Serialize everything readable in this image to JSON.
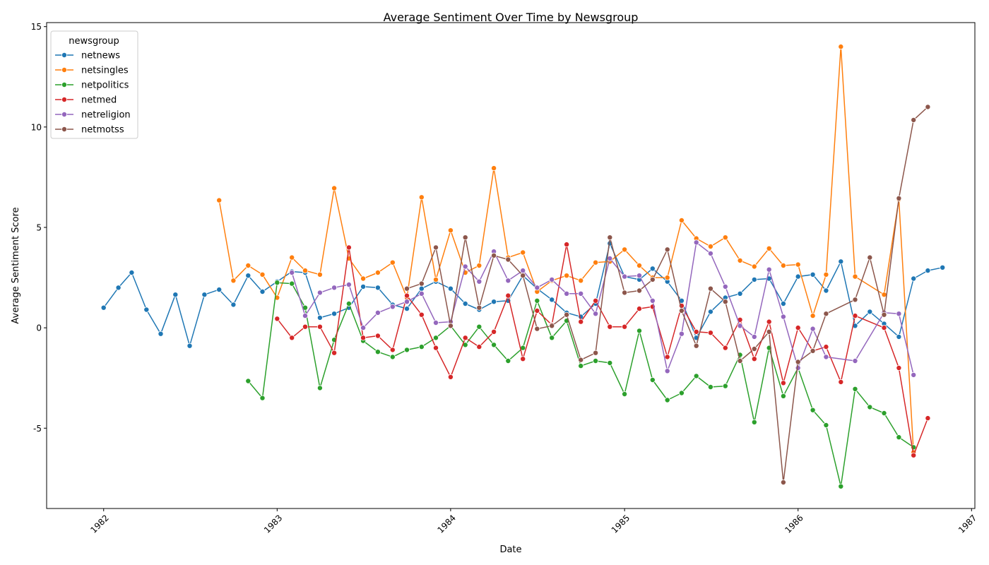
{
  "chart_data": {
    "type": "line",
    "title": "Average Sentiment Over Time by Newsgroup",
    "xlabel": "Date",
    "ylabel": "Average Sentiment Score",
    "xlim": [
      "1981-09-03",
      "1987-01-08"
    ],
    "ylim": [
      -9,
      15.2
    ],
    "x_ticks": [
      "1982",
      "1983",
      "1984",
      "1985",
      "1986",
      "1987"
    ],
    "y_ticks": [
      -5,
      0,
      5,
      10,
      15
    ],
    "grid": false,
    "legend": {
      "title": "newsgroup",
      "placement": "top-left"
    },
    "series": [
      {
        "name": "netnews",
        "color": "#1f77b4",
        "points": [
          [
            "1982-01",
            1.0
          ],
          [
            "1982-02",
            2.0
          ],
          [
            "1982-03",
            2.75
          ],
          [
            "1982-04",
            0.9
          ],
          [
            "1982-05",
            -0.3
          ],
          [
            "1982-06",
            1.65
          ],
          [
            "1982-07",
            -0.9
          ],
          [
            "1982-08",
            1.65
          ],
          [
            "1982-09",
            1.9
          ],
          [
            "1982-10",
            1.15
          ],
          [
            "1982-11",
            2.6
          ],
          [
            "1982-12",
            1.8
          ],
          [
            "1983-01",
            2.3
          ],
          [
            "1983-02",
            2.8
          ],
          [
            "1983-03",
            2.75
          ],
          [
            "1983-04",
            0.5
          ],
          [
            "1983-05",
            0.7
          ],
          [
            "1983-06",
            1.0
          ],
          [
            "1983-07",
            2.05
          ],
          [
            "1983-08",
            2.0
          ],
          [
            "1983-09",
            1.15
          ],
          [
            "1983-10",
            0.95
          ],
          [
            "1983-11",
            1.95
          ],
          [
            "1983-12",
            2.3
          ],
          [
            "1984-01",
            1.95
          ],
          [
            "1984-02",
            1.2
          ],
          [
            "1984-03",
            0.9
          ],
          [
            "1984-04",
            1.3
          ],
          [
            "1984-05",
            1.35
          ],
          [
            "1984-06",
            2.6
          ],
          [
            "1984-07",
            1.95
          ],
          [
            "1984-08",
            1.4
          ],
          [
            "1984-09",
            0.75
          ],
          [
            "1984-10",
            0.55
          ],
          [
            "1984-11",
            1.2
          ],
          [
            "1984-12",
            4.2
          ],
          [
            "1985-01",
            2.55
          ],
          [
            "1985-02",
            2.4
          ],
          [
            "1985-03",
            2.95
          ],
          [
            "1985-04",
            2.3
          ],
          [
            "1985-05",
            1.35
          ],
          [
            "1985-06",
            -0.5
          ],
          [
            "1985-07",
            0.8
          ],
          [
            "1985-08",
            1.5
          ],
          [
            "1985-09",
            1.7
          ],
          [
            "1985-10",
            2.4
          ],
          [
            "1985-11",
            2.45
          ],
          [
            "1985-12",
            1.2
          ],
          [
            "1986-01",
            2.55
          ],
          [
            "1986-02",
            2.65
          ],
          [
            "1986-03",
            1.85
          ],
          [
            "1986-04",
            3.3
          ],
          [
            "1986-05",
            0.1
          ],
          [
            "1986-06",
            0.8
          ],
          [
            "1986-07",
            0.2
          ],
          [
            "1986-08",
            -0.45
          ],
          [
            "1986-09",
            2.45
          ],
          [
            "1986-10",
            2.85
          ],
          [
            "1986-11",
            3.0
          ]
        ]
      },
      {
        "name": "netsingles",
        "color": "#ff7f0e",
        "points": [
          [
            "1982-09",
            6.35
          ],
          [
            "1982-10",
            2.35
          ],
          [
            "1982-11",
            3.1
          ],
          [
            "1982-12",
            2.65
          ],
          [
            "1983-01",
            1.5
          ],
          [
            "1983-02",
            3.5
          ],
          [
            "1983-03",
            2.85
          ],
          [
            "1983-04",
            2.65
          ],
          [
            "1983-05",
            6.95
          ],
          [
            "1983-06",
            3.45
          ],
          [
            "1983-07",
            2.45
          ],
          [
            "1983-08",
            2.75
          ],
          [
            "1983-09",
            3.25
          ],
          [
            "1983-10",
            1.5
          ],
          [
            "1983-11",
            6.5
          ],
          [
            "1983-12",
            2.4
          ],
          [
            "1984-01",
            4.85
          ],
          [
            "1984-02",
            2.75
          ],
          [
            "1984-03",
            3.1
          ],
          [
            "1984-04",
            7.95
          ],
          [
            "1984-05",
            3.5
          ],
          [
            "1984-06",
            3.75
          ],
          [
            "1984-07",
            1.8
          ],
          [
            "1984-08",
            2.35
          ],
          [
            "1984-09",
            2.6
          ],
          [
            "1984-10",
            2.35
          ],
          [
            "1984-11",
            3.25
          ],
          [
            "1984-12",
            3.3
          ],
          [
            "1985-01",
            3.9
          ],
          [
            "1985-02",
            3.1
          ],
          [
            "1985-03",
            2.5
          ],
          [
            "1985-04",
            2.5
          ],
          [
            "1985-05",
            5.35
          ],
          [
            "1985-06",
            4.45
          ],
          [
            "1985-07",
            4.05
          ],
          [
            "1985-08",
            4.5
          ],
          [
            "1985-09",
            3.35
          ],
          [
            "1985-10",
            3.05
          ],
          [
            "1985-11",
            3.95
          ],
          [
            "1985-12",
            3.1
          ],
          [
            "1986-01",
            3.15
          ],
          [
            "1986-02",
            0.6
          ],
          [
            "1986-03",
            2.65
          ],
          [
            "1986-04",
            14.0
          ],
          [
            "1986-05",
            2.55
          ],
          [
            "1986-07",
            1.65
          ],
          [
            "1986-08",
            6.4
          ],
          [
            "1986-09",
            -6.2
          ]
        ]
      },
      {
        "name": "netpolitics",
        "color": "#2ca02c",
        "points": [
          [
            "1982-11",
            -2.65
          ],
          [
            "1982-12",
            -3.5
          ],
          [
            "1983-01",
            2.25
          ],
          [
            "1983-02",
            2.2
          ],
          [
            "1983-03",
            1.0
          ],
          [
            "1983-04",
            -3.0
          ],
          [
            "1983-05",
            -0.6
          ],
          [
            "1983-06",
            1.2
          ],
          [
            "1983-07",
            -0.65
          ],
          [
            "1983-08",
            -1.2
          ],
          [
            "1983-09",
            -1.45
          ],
          [
            "1983-10",
            -1.1
          ],
          [
            "1983-11",
            -0.95
          ],
          [
            "1983-12",
            -0.5
          ],
          [
            "1984-01",
            0.1
          ],
          [
            "1984-02",
            -0.85
          ],
          [
            "1984-03",
            0.05
          ],
          [
            "1984-04",
            -0.85
          ],
          [
            "1984-05",
            -1.65
          ],
          [
            "1984-06",
            -1.0
          ],
          [
            "1984-07",
            1.35
          ],
          [
            "1984-08",
            -0.5
          ],
          [
            "1984-09",
            0.35
          ],
          [
            "1984-10",
            -1.9
          ],
          [
            "1984-11",
            -1.65
          ],
          [
            "1984-12",
            -1.75
          ],
          [
            "1985-01",
            -3.3
          ],
          [
            "1985-02",
            -0.15
          ],
          [
            "1985-03",
            -2.6
          ],
          [
            "1985-04",
            -3.6
          ],
          [
            "1985-05",
            -3.25
          ],
          [
            "1985-06",
            -2.4
          ],
          [
            "1985-07",
            -2.95
          ],
          [
            "1985-08",
            -2.9
          ],
          [
            "1985-09",
            -1.35
          ],
          [
            "1985-10",
            -4.7
          ],
          [
            "1985-11",
            -1.0
          ],
          [
            "1985-12",
            -3.4
          ],
          [
            "1986-01",
            -2.0
          ],
          [
            "1986-02",
            -4.1
          ],
          [
            "1986-03",
            -4.85
          ],
          [
            "1986-04",
            -7.9
          ],
          [
            "1986-05",
            -3.05
          ],
          [
            "1986-06",
            -3.95
          ],
          [
            "1986-07",
            -4.25
          ],
          [
            "1986-08",
            -5.45
          ],
          [
            "1986-09",
            -5.95
          ]
        ]
      },
      {
        "name": "netmed",
        "color": "#d62728",
        "points": [
          [
            "1983-01",
            0.45
          ],
          [
            "1983-02",
            -0.5
          ],
          [
            "1983-03",
            0.05
          ],
          [
            "1983-04",
            0.05
          ],
          [
            "1983-05",
            -1.25
          ],
          [
            "1983-06",
            4.0
          ],
          [
            "1983-07",
            -0.5
          ],
          [
            "1983-08",
            -0.4
          ],
          [
            "1983-09",
            -1.1
          ],
          [
            "1983-10",
            1.6
          ],
          [
            "1983-11",
            0.65
          ],
          [
            "1983-12",
            -1.0
          ],
          [
            "1984-01",
            -2.45
          ],
          [
            "1984-02",
            -0.5
          ],
          [
            "1984-03",
            -0.95
          ],
          [
            "1984-04",
            -0.2
          ],
          [
            "1984-05",
            1.6
          ],
          [
            "1984-06",
            -1.55
          ],
          [
            "1984-07",
            0.85
          ],
          [
            "1984-08",
            0.15
          ],
          [
            "1984-09",
            4.15
          ],
          [
            "1984-10",
            0.3
          ],
          [
            "1984-11",
            1.35
          ],
          [
            "1984-12",
            0.05
          ],
          [
            "1985-01",
            0.05
          ],
          [
            "1985-02",
            0.95
          ],
          [
            "1985-03",
            1.05
          ],
          [
            "1985-04",
            -1.45
          ],
          [
            "1985-05",
            1.1
          ],
          [
            "1985-06",
            -0.2
          ],
          [
            "1985-07",
            -0.25
          ],
          [
            "1985-08",
            -1.0
          ],
          [
            "1985-09",
            0.4
          ],
          [
            "1985-10",
            -1.55
          ],
          [
            "1985-11",
            0.3
          ],
          [
            "1985-12",
            -2.75
          ],
          [
            "1986-01",
            0.0
          ],
          [
            "1986-02",
            -1.15
          ],
          [
            "1986-03",
            -0.95
          ],
          [
            "1986-04",
            -2.7
          ],
          [
            "1986-05",
            0.6
          ],
          [
            "1986-07",
            0.0
          ],
          [
            "1986-08",
            -2.0
          ],
          [
            "1986-09",
            -6.35
          ],
          [
            "1986-10",
            -4.5
          ]
        ]
      },
      {
        "name": "netreligion",
        "color": "#9467bd",
        "points": [
          [
            "1983-02",
            2.75
          ],
          [
            "1983-03",
            0.6
          ],
          [
            "1983-04",
            1.75
          ],
          [
            "1983-05",
            2.0
          ],
          [
            "1983-06",
            2.15
          ],
          [
            "1983-07",
            0.0
          ],
          [
            "1983-08",
            0.75
          ],
          [
            "1983-09",
            1.05
          ],
          [
            "1983-10",
            1.3
          ],
          [
            "1983-11",
            1.7
          ],
          [
            "1983-12",
            0.25
          ],
          [
            "1984-01",
            0.3
          ],
          [
            "1984-02",
            3.05
          ],
          [
            "1984-03",
            2.3
          ],
          [
            "1984-04",
            3.8
          ],
          [
            "1984-05",
            2.35
          ],
          [
            "1984-06",
            2.85
          ],
          [
            "1984-07",
            2.0
          ],
          [
            "1984-08",
            2.4
          ],
          [
            "1984-09",
            1.7
          ],
          [
            "1984-10",
            1.7
          ],
          [
            "1984-11",
            0.7
          ],
          [
            "1984-12",
            3.45
          ],
          [
            "1985-01",
            2.55
          ],
          [
            "1985-02",
            2.6
          ],
          [
            "1985-03",
            1.35
          ],
          [
            "1985-04",
            -2.15
          ],
          [
            "1985-05",
            -0.3
          ],
          [
            "1985-06",
            4.25
          ],
          [
            "1985-07",
            3.7
          ],
          [
            "1985-08",
            2.05
          ],
          [
            "1985-09",
            0.1
          ],
          [
            "1985-10",
            -0.45
          ],
          [
            "1985-11",
            2.9
          ],
          [
            "1985-12",
            0.55
          ],
          [
            "1986-01",
            -2.0
          ],
          [
            "1986-02",
            -0.05
          ],
          [
            "1986-03",
            -1.45
          ],
          [
            "1986-05",
            -1.65
          ],
          [
            "1986-07",
            0.75
          ],
          [
            "1986-08",
            0.7
          ],
          [
            "1986-09",
            -2.35
          ]
        ]
      },
      {
        "name": "netmotss",
        "color": "#8c564b",
        "points": [
          [
            "1983-10",
            1.95
          ],
          [
            "1983-11",
            2.2
          ],
          [
            "1983-12",
            4.0
          ],
          [
            "1984-01",
            0.1
          ],
          [
            "1984-02",
            4.5
          ],
          [
            "1984-03",
            1.0
          ],
          [
            "1984-04",
            3.6
          ],
          [
            "1984-05",
            3.4
          ],
          [
            "1984-06",
            2.6
          ],
          [
            "1984-07",
            -0.05
          ],
          [
            "1984-08",
            0.1
          ],
          [
            "1984-09",
            0.65
          ],
          [
            "1984-10",
            -1.6
          ],
          [
            "1984-11",
            -1.25
          ],
          [
            "1984-12",
            4.5
          ],
          [
            "1985-01",
            1.75
          ],
          [
            "1985-02",
            1.85
          ],
          [
            "1985-03",
            2.4
          ],
          [
            "1985-04",
            3.9
          ],
          [
            "1985-05",
            0.85
          ],
          [
            "1985-06",
            -0.9
          ],
          [
            "1985-07",
            1.95
          ],
          [
            "1985-08",
            1.3
          ],
          [
            "1985-09",
            -1.65
          ],
          [
            "1985-10",
            -1.05
          ],
          [
            "1985-11",
            -0.2
          ],
          [
            "1985-12",
            -7.7
          ],
          [
            "1986-01",
            -1.7
          ],
          [
            "1986-02",
            -1.15
          ],
          [
            "1986-03",
            0.7
          ],
          [
            "1986-05",
            1.4
          ],
          [
            "1986-06",
            3.5
          ],
          [
            "1986-07",
            0.65
          ],
          [
            "1986-08",
            6.45
          ],
          [
            "1986-09",
            10.35
          ],
          [
            "1986-10",
            11.0
          ]
        ]
      }
    ]
  }
}
